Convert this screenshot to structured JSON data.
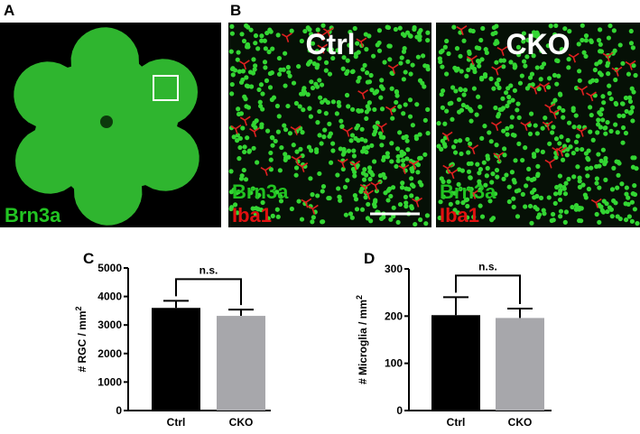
{
  "panels": {
    "A": {
      "label": "A",
      "stain": "Brn3a"
    },
    "B": {
      "label": "B",
      "ctrl_title": "Ctrl",
      "cko_title": "CKO",
      "stain1": "Brn3a",
      "stain2": "Iba1"
    }
  },
  "chart_data": [
    {
      "type": "bar",
      "label": "C",
      "ylabel": "# RGC / mm",
      "ylabel_sup": "2",
      "annotation": "n.s.",
      "categories": [
        "Ctrl",
        "CKO"
      ],
      "values": [
        3600,
        3320
      ],
      "errors": [
        250,
        220
      ],
      "colors": [
        "#000000",
        "#a7a7ab"
      ],
      "ylim": [
        0,
        5000
      ],
      "yticks": [
        0,
        1000,
        2000,
        3000,
        4000,
        5000
      ]
    },
    {
      "type": "bar",
      "label": "D",
      "ylabel": "# Microglia / mm",
      "ylabel_sup": "2",
      "annotation": "n.s.",
      "categories": [
        "Ctrl",
        "CKO"
      ],
      "values": [
        202,
        196
      ],
      "errors": [
        38,
        20
      ],
      "colors": [
        "#000000",
        "#a7a7ab"
      ],
      "ylim": [
        0,
        300
      ],
      "yticks": [
        0,
        100,
        200,
        300
      ]
    }
  ]
}
